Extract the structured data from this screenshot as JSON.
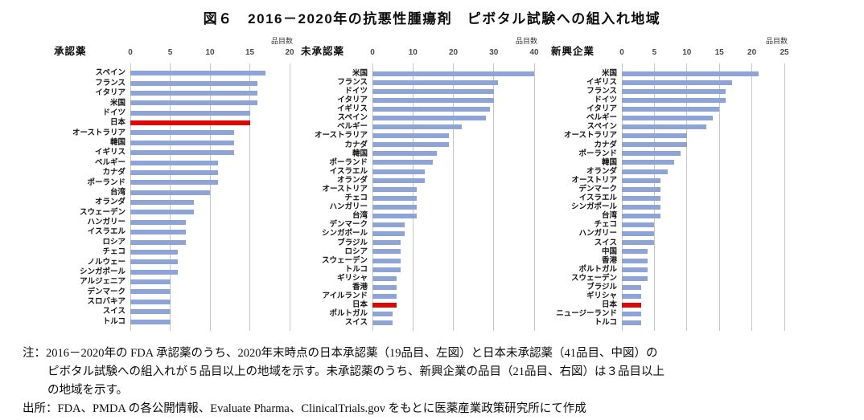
{
  "figure": {
    "title": "図６　2016－2020年の抗悪性腫瘍剤　ピボタル試験への組入れ地域"
  },
  "chart_data": [
    {
      "type": "bar",
      "orientation": "horizontal",
      "title": "承認薬",
      "unit_label": "品目数",
      "xlim": [
        0,
        20
      ],
      "ticks": [
        0,
        5,
        10,
        15,
        20
      ],
      "grid": true,
      "bar_color": "#8ea3d6",
      "highlight_color": "#dd0806",
      "highlight_category": "日本",
      "categories": [
        "スペイン",
        "フランス",
        "イタリア",
        "米国",
        "ドイツ",
        "日本",
        "オーストラリア",
        "韓国",
        "イギリス",
        "ベルギー",
        "カナダ",
        "ポーランド",
        "台湾",
        "オランダ",
        "スウェーデン",
        "ハンガリー",
        "イスラエル",
        "ロシア",
        "チェコ",
        "ノルウェー",
        "シンガポール",
        "アルジェニア",
        "デンマーク",
        "スロバキア",
        "スイス",
        "トルコ"
      ],
      "values": [
        17,
        16,
        16,
        16,
        15,
        15,
        13,
        13,
        13,
        11,
        11,
        11,
        10,
        8,
        8,
        7,
        7,
        7,
        6,
        6,
        6,
        5,
        5,
        5,
        5,
        5
      ]
    },
    {
      "type": "bar",
      "orientation": "horizontal",
      "title": "未承認薬",
      "unit_label": "品目数",
      "xlim": [
        0,
        40
      ],
      "ticks": [
        0,
        10,
        20,
        30,
        40
      ],
      "grid": true,
      "bar_color": "#8ea3d6",
      "highlight_color": "#dd0806",
      "highlight_category": "日本",
      "categories": [
        "米国",
        "フランス",
        "ドイツ",
        "イタリア",
        "イギリス",
        "スペイン",
        "ベルギー",
        "オーストラリア",
        "カナダ",
        "韓国",
        "ポーランド",
        "イスラエル",
        "オランダ",
        "オーストリア",
        "チェコ",
        "ハンガリー",
        "台湾",
        "デンマーク",
        "シンガポール",
        "ブラジル",
        "ロシア",
        "スウェーデン",
        "トルコ",
        "ギリシャ",
        "香港",
        "アイルランド",
        "日本",
        "ポルトガル",
        "スイス"
      ],
      "values": [
        40,
        31,
        30,
        30,
        29,
        28,
        22,
        19,
        19,
        16,
        15,
        13,
        13,
        11,
        11,
        11,
        11,
        8,
        8,
        7,
        7,
        7,
        7,
        6,
        6,
        6,
        6,
        5,
        5
      ]
    },
    {
      "type": "bar",
      "orientation": "horizontal",
      "title": "新興企業",
      "unit_label": "品目数",
      "xlim": [
        0,
        25
      ],
      "ticks": [
        0,
        5,
        10,
        15,
        20,
        25
      ],
      "grid": true,
      "bar_color": "#8ea3d6",
      "highlight_color": "#dd0806",
      "highlight_category": "日本",
      "categories": [
        "米国",
        "イギリス",
        "フランス",
        "ドイツ",
        "イタリア",
        "ベルギー",
        "スペイン",
        "オーストラリア",
        "カナダ",
        "ポーランド",
        "韓国",
        "オランダ",
        "オーストリア",
        "デンマーク",
        "イスラエル",
        "シンガポール",
        "台湾",
        "チェコ",
        "ハンガリー",
        "スイス",
        "中国",
        "香港",
        "ポルトガル",
        "スウェーデン",
        "ブラジル",
        "ギリシャ",
        "日本",
        "ニュージーランド",
        "トルコ"
      ],
      "values": [
        21,
        17,
        16,
        16,
        15,
        14,
        13,
        10,
        10,
        9,
        8,
        7,
        6,
        6,
        6,
        6,
        6,
        5,
        5,
        5,
        4,
        4,
        4,
        4,
        3,
        3,
        3,
        3,
        3
      ]
    }
  ],
  "notes": {
    "note_lines": [
      "注：2016－2020年の FDA 承認薬のうち、2020年末時点の日本承認薬（19品目、左図）と日本未承認薬（41品目、中図）の",
      "ピボタル試験への組入れが５品目以上の地域を示す。未承認薬のうち、新興企業の品目（21品目、右図）は３品目以上",
      "の地域を示す。"
    ],
    "source_line": "出所：FDA、PMDA の各公開情報、Evaluate Pharma、ClinicalTrials.gov をもとに医薬産業政策研究所にて作成"
  },
  "colors": {
    "bar_blue": "#8ea3d6",
    "bar_red": "#dd0806",
    "gridline": "#c6c6c6"
  }
}
